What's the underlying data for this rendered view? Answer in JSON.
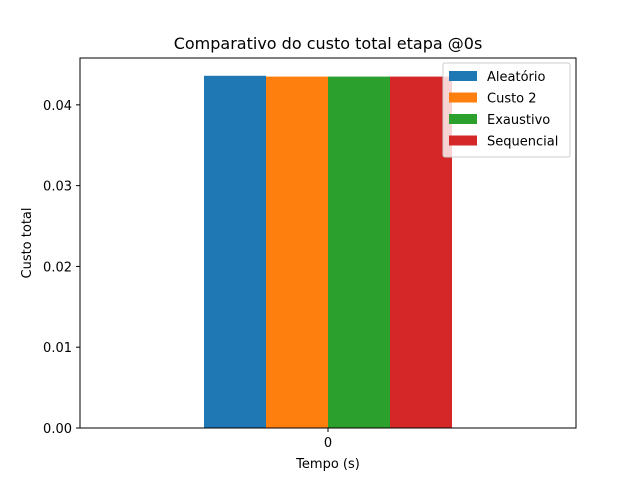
{
  "chart_data": {
    "type": "bar",
    "title": "Comparativo do custo total etapa @0s",
    "xlabel": "Tempo (s)",
    "ylabel": "Custo total",
    "categories": [
      "0"
    ],
    "series": [
      {
        "name": "Aleatório",
        "values": [
          0.0436
        ],
        "color": "#1f77b4"
      },
      {
        "name": "Custo 2",
        "values": [
          0.0435
        ],
        "color": "#ff7f0e"
      },
      {
        "name": "Exaustivo",
        "values": [
          0.0435
        ],
        "color": "#2ca02c"
      },
      {
        "name": "Sequencial",
        "values": [
          0.0435
        ],
        "color": "#d62728"
      }
    ],
    "yticks": [
      "0.00",
      "0.01",
      "0.02",
      "0.03",
      "0.04"
    ],
    "ylim": [
      0,
      0.0458
    ],
    "grid": false,
    "legend_position": "top-right"
  }
}
